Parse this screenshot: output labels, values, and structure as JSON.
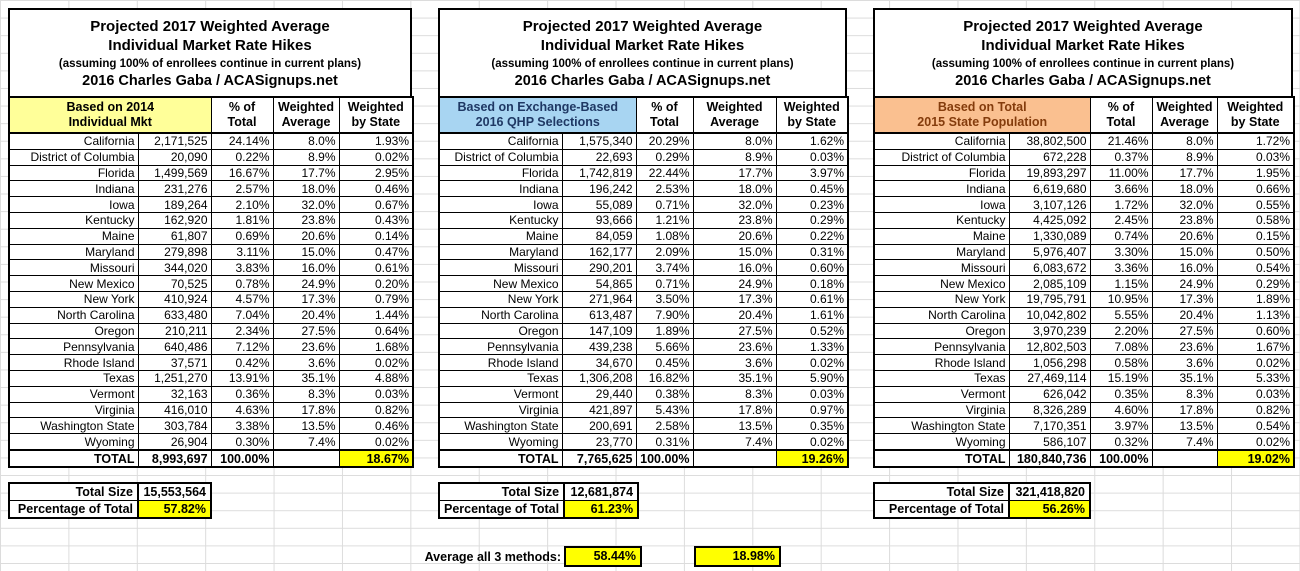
{
  "shared": {
    "title_line1": "Projected 2017 Weighted Average",
    "title_line2": "Individual Market Rate Hikes",
    "title_line3": "(assuming 100% of enrollees continue in current plans)",
    "title_line4": "2016 Charles Gaba / ACASignups.net",
    "col_headers": [
      {
        "line1": "% of",
        "line2": "Total"
      },
      {
        "line1": "Weighted",
        "line2": "Average"
      },
      {
        "line1": "Weighted",
        "line2": "by State"
      }
    ],
    "highlight_color": "#ffff00",
    "gridline_color": "#dcdcdc"
  },
  "tables": [
    {
      "basis_line1": "Based on 2014",
      "basis_line2": "Individual Mkt",
      "basis_bg": "#ffff99",
      "basis_text": "#000000",
      "rows": [
        [
          "California",
          "2,171,525",
          "24.14%",
          "8.0%",
          "1.93%"
        ],
        [
          "District of Columbia",
          "20,090",
          "0.22%",
          "8.9%",
          "0.02%"
        ],
        [
          "Florida",
          "1,499,569",
          "16.67%",
          "17.7%",
          "2.95%"
        ],
        [
          "Indiana",
          "231,276",
          "2.57%",
          "18.0%",
          "0.46%"
        ],
        [
          "Iowa",
          "189,264",
          "2.10%",
          "32.0%",
          "0.67%"
        ],
        [
          "Kentucky",
          "162,920",
          "1.81%",
          "23.8%",
          "0.43%"
        ],
        [
          "Maine",
          "61,807",
          "0.69%",
          "20.6%",
          "0.14%"
        ],
        [
          "Maryland",
          "279,898",
          "3.11%",
          "15.0%",
          "0.47%"
        ],
        [
          "Missouri",
          "344,020",
          "3.83%",
          "16.0%",
          "0.61%"
        ],
        [
          "New Mexico",
          "70,525",
          "0.78%",
          "24.9%",
          "0.20%"
        ],
        [
          "New York",
          "410,924",
          "4.57%",
          "17.3%",
          "0.79%"
        ],
        [
          "North Carolina",
          "633,480",
          "7.04%",
          "20.4%",
          "1.44%"
        ],
        [
          "Oregon",
          "210,211",
          "2.34%",
          "27.5%",
          "0.64%"
        ],
        [
          "Pennsylvania",
          "640,486",
          "7.12%",
          "23.6%",
          "1.68%"
        ],
        [
          "Rhode Island",
          "37,571",
          "0.42%",
          "3.6%",
          "0.02%"
        ],
        [
          "Texas",
          "1,251,270",
          "13.91%",
          "35.1%",
          "4.88%"
        ],
        [
          "Vermont",
          "32,163",
          "0.36%",
          "8.3%",
          "0.03%"
        ],
        [
          "Virginia",
          "416,010",
          "4.63%",
          "17.8%",
          "0.82%"
        ],
        [
          "Washington State",
          "303,784",
          "3.38%",
          "13.5%",
          "0.46%"
        ],
        [
          "Wyoming",
          "26,904",
          "0.30%",
          "7.4%",
          "0.02%"
        ]
      ],
      "total": {
        "label": "TOTAL",
        "value": "8,993,697",
        "pct": "100.00%",
        "weighted_avg": "",
        "weighted_state": "18.67%"
      },
      "summary": {
        "size_label": "Total Size",
        "size_value": "15,553,564",
        "pct_label": "Percentage of Total",
        "pct_value": "57.82%"
      }
    },
    {
      "basis_line1": "Based on Exchange-Based",
      "basis_line2": "2016 QHP Selections",
      "basis_bg": "#a8d5f2",
      "basis_text": "#1f3864",
      "rows": [
        [
          "California",
          "1,575,340",
          "20.29%",
          "8.0%",
          "1.62%"
        ],
        [
          "District of Columbia",
          "22,693",
          "0.29%",
          "8.9%",
          "0.03%"
        ],
        [
          "Florida",
          "1,742,819",
          "22.44%",
          "17.7%",
          "3.97%"
        ],
        [
          "Indiana",
          "196,242",
          "2.53%",
          "18.0%",
          "0.45%"
        ],
        [
          "Iowa",
          "55,089",
          "0.71%",
          "32.0%",
          "0.23%"
        ],
        [
          "Kentucky",
          "93,666",
          "1.21%",
          "23.8%",
          "0.29%"
        ],
        [
          "Maine",
          "84,059",
          "1.08%",
          "20.6%",
          "0.22%"
        ],
        [
          "Maryland",
          "162,177",
          "2.09%",
          "15.0%",
          "0.31%"
        ],
        [
          "Missouri",
          "290,201",
          "3.74%",
          "16.0%",
          "0.60%"
        ],
        [
          "New Mexico",
          "54,865",
          "0.71%",
          "24.9%",
          "0.18%"
        ],
        [
          "New York",
          "271,964",
          "3.50%",
          "17.3%",
          "0.61%"
        ],
        [
          "North Carolina",
          "613,487",
          "7.90%",
          "20.4%",
          "1.61%"
        ],
        [
          "Oregon",
          "147,109",
          "1.89%",
          "27.5%",
          "0.52%"
        ],
        [
          "Pennsylvania",
          "439,238",
          "5.66%",
          "23.6%",
          "1.33%"
        ],
        [
          "Rhode Island",
          "34,670",
          "0.45%",
          "3.6%",
          "0.02%"
        ],
        [
          "Texas",
          "1,306,208",
          "16.82%",
          "35.1%",
          "5.90%"
        ],
        [
          "Vermont",
          "29,440",
          "0.38%",
          "8.3%",
          "0.03%"
        ],
        [
          "Virginia",
          "421,897",
          "5.43%",
          "17.8%",
          "0.97%"
        ],
        [
          "Washington State",
          "200,691",
          "2.58%",
          "13.5%",
          "0.35%"
        ],
        [
          "Wyoming",
          "23,770",
          "0.31%",
          "7.4%",
          "0.02%"
        ]
      ],
      "total": {
        "label": "TOTAL",
        "value": "7,765,625",
        "pct": "100.00%",
        "weighted_avg": "",
        "weighted_state": "19.26%"
      },
      "summary": {
        "size_label": "Total Size",
        "size_value": "12,681,874",
        "pct_label": "Percentage of Total",
        "pct_value": "61.23%"
      }
    },
    {
      "basis_line1": "Based on Total",
      "basis_line2": "2015 State Population",
      "basis_bg": "#fac090",
      "basis_text": "#843c0c",
      "rows": [
        [
          "California",
          "38,802,500",
          "21.46%",
          "8.0%",
          "1.72%"
        ],
        [
          "District of Columbia",
          "672,228",
          "0.37%",
          "8.9%",
          "0.03%"
        ],
        [
          "Florida",
          "19,893,297",
          "11.00%",
          "17.7%",
          "1.95%"
        ],
        [
          "Indiana",
          "6,619,680",
          "3.66%",
          "18.0%",
          "0.66%"
        ],
        [
          "Iowa",
          "3,107,126",
          "1.72%",
          "32.0%",
          "0.55%"
        ],
        [
          "Kentucky",
          "4,425,092",
          "2.45%",
          "23.8%",
          "0.58%"
        ],
        [
          "Maine",
          "1,330,089",
          "0.74%",
          "20.6%",
          "0.15%"
        ],
        [
          "Maryland",
          "5,976,407",
          "3.30%",
          "15.0%",
          "0.50%"
        ],
        [
          "Missouri",
          "6,083,672",
          "3.36%",
          "16.0%",
          "0.54%"
        ],
        [
          "New Mexico",
          "2,085,109",
          "1.15%",
          "24.9%",
          "0.29%"
        ],
        [
          "New York",
          "19,795,791",
          "10.95%",
          "17.3%",
          "1.89%"
        ],
        [
          "North Carolina",
          "10,042,802",
          "5.55%",
          "20.4%",
          "1.13%"
        ],
        [
          "Oregon",
          "3,970,239",
          "2.20%",
          "27.5%",
          "0.60%"
        ],
        [
          "Pennsylvania",
          "12,802,503",
          "7.08%",
          "23.6%",
          "1.67%"
        ],
        [
          "Rhode Island",
          "1,056,298",
          "0.58%",
          "3.6%",
          "0.02%"
        ],
        [
          "Texas",
          "27,469,114",
          "15.19%",
          "35.1%",
          "5.33%"
        ],
        [
          "Vermont",
          "626,042",
          "0.35%",
          "8.3%",
          "0.03%"
        ],
        [
          "Virginia",
          "8,326,289",
          "4.60%",
          "17.8%",
          "0.82%"
        ],
        [
          "Washington State",
          "7,170,351",
          "3.97%",
          "13.5%",
          "0.54%"
        ],
        [
          "Wyoming",
          "586,107",
          "0.32%",
          "7.4%",
          "0.02%"
        ]
      ],
      "total": {
        "label": "TOTAL",
        "value": "180,840,736",
        "pct": "100.00%",
        "weighted_avg": "",
        "weighted_state": "19.02%"
      },
      "summary": {
        "size_label": "Total Size",
        "size_value": "321,418,820",
        "pct_label": "Percentage of Total",
        "pct_value": "56.26%"
      }
    }
  ],
  "footer": {
    "average_label": "Average all 3 methods:",
    "average_pct": "58.44%",
    "average_weighted": "18.98%"
  }
}
